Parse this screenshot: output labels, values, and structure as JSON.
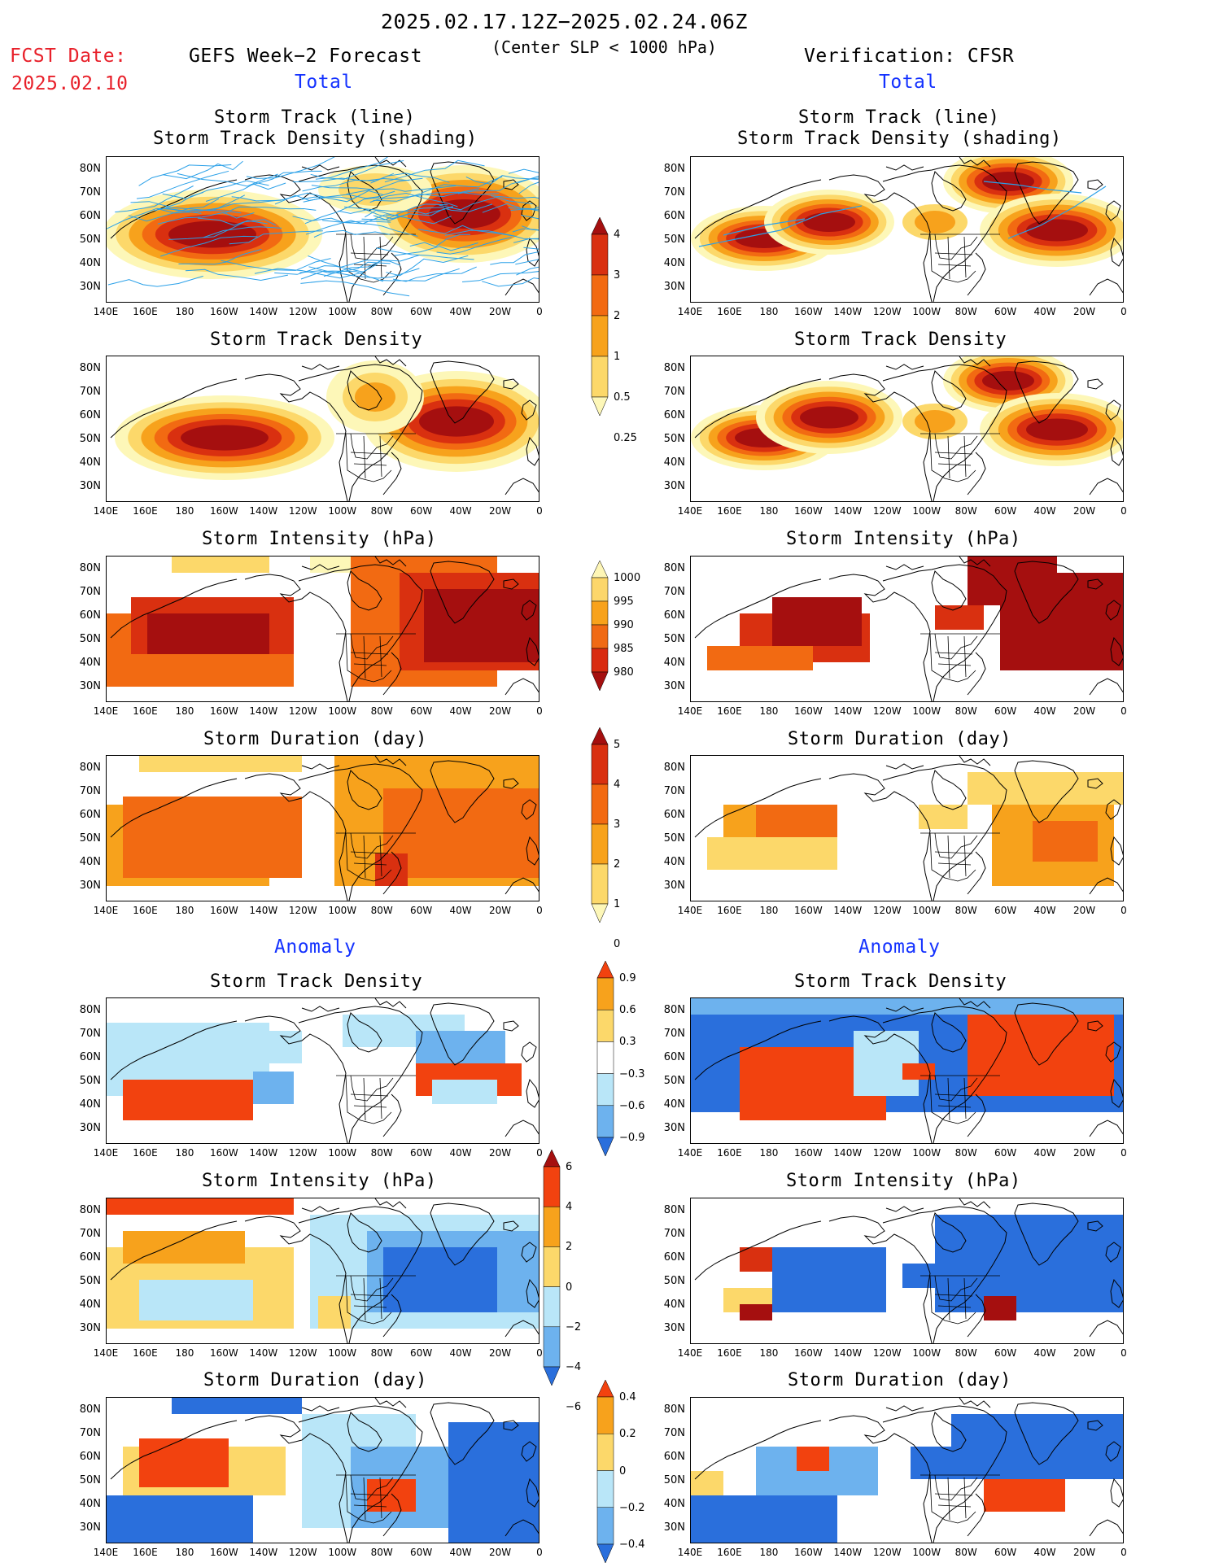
{
  "header": {
    "period": "2025.02.17.12Z−2025.02.24.06Z",
    "condition": "(Center SLP < 1000 hPa)",
    "fcst_label": "FCST Date:",
    "fcst_date": "2025.02.10",
    "left_title": "GEFS Week−2 Forecast",
    "right_title": "Verification: CFSR",
    "total_label": "Total",
    "anomaly_label": "Anomaly"
  },
  "titles": {
    "track_line": "Storm Track (line)",
    "track_density_shading": "Storm Track Density (shading)",
    "track_density": "Storm Track Density",
    "intensity": "Storm Intensity (hPa)",
    "duration": "Storm Duration (day)"
  },
  "axes": {
    "lat_labels": [
      "80N",
      "70N",
      "60N",
      "50N",
      "40N",
      "30N"
    ],
    "lon_labels": [
      "140E",
      "160E",
      "180",
      "160W",
      "140W",
      "120W",
      "100W",
      "80W",
      "60W",
      "40W",
      "20W",
      "0"
    ]
  },
  "colorbars": {
    "density": {
      "labels": [
        "4",
        "3",
        "2",
        "1",
        "0.5",
        "0.25"
      ],
      "colors": [
        "#a50f0f",
        "#d93010",
        "#f26a12",
        "#f7a21c",
        "#fcd86a",
        "#fdf7b8"
      ]
    },
    "intensity": {
      "labels": [
        "1000",
        "995",
        "990",
        "985",
        "980"
      ],
      "colors": [
        "#fef6b6",
        "#fcd66b",
        "#f8a21b",
        "#f06a14",
        "#d92b10",
        "#a50f0f"
      ]
    },
    "duration": {
      "labels": [
        "5",
        "4",
        "3",
        "2",
        "1",
        "0"
      ],
      "colors": [
        "#a50f0f",
        "#d93010",
        "#f26a12",
        "#f7a21c",
        "#fcd86a",
        "#fdf7b8"
      ]
    },
    "anom_density": {
      "labels": [
        "0.9",
        "0.6",
        "0.3",
        "−0.3",
        "−0.6",
        "−0.9"
      ],
      "colors": [
        "#f2420f",
        "#f7a21c",
        "#fcd86a",
        "#ffffff",
        "#b9e6f8",
        "#6db2ee",
        "#2a6fdc"
      ]
    },
    "anom_intensity": {
      "labels": [
        "6",
        "4",
        "2",
        "0",
        "−2",
        "−4",
        "−6"
      ],
      "colors": [
        "#a50f0f",
        "#f2420f",
        "#f7a21c",
        "#fcd86a",
        "#b9e6f8",
        "#6db2ee",
        "#2a6fdc"
      ]
    },
    "anom_duration": {
      "labels": [
        "0.4",
        "0.2",
        "0",
        "−0.2",
        "−0.4"
      ],
      "colors": [
        "#f2420f",
        "#f7a21c",
        "#fcd86a",
        "#b9e6f8",
        "#6db2ee",
        "#2a6fdc"
      ]
    }
  },
  "colors": {
    "track_line": "#2aa0e8",
    "fcst_red": "#e8202a",
    "title_blue": "#1432ff"
  }
}
